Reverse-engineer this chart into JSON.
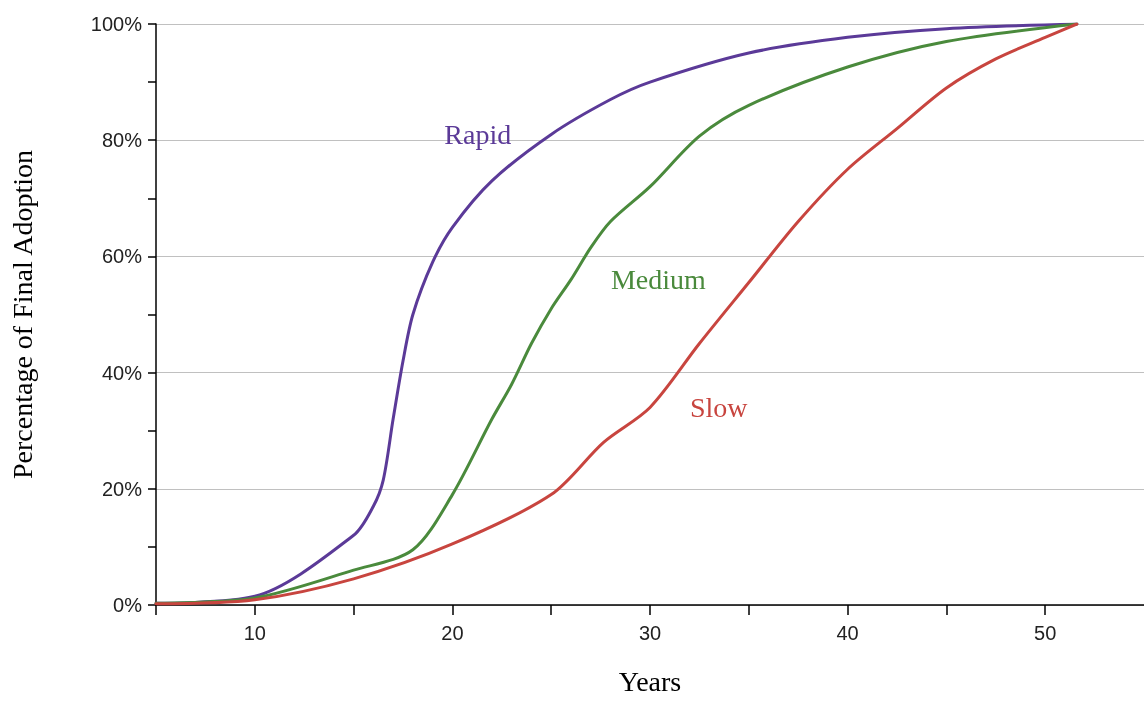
{
  "chart_data": {
    "type": "line",
    "xlabel": "Years",
    "ylabel": "Percentage of Final Adoption",
    "xlim": [
      5,
      55
    ],
    "xticks": [
      {
        "value": 5,
        "label": null
      },
      10,
      {
        "value": 15,
        "label": null
      },
      20,
      {
        "value": 25,
        "label": null
      },
      30,
      {
        "value": 35,
        "label": null
      },
      40,
      {
        "value": 45,
        "label": null
      },
      50
    ],
    "ylim": [
      0,
      100
    ],
    "yticks": [
      {
        "value": 0,
        "label": "0%"
      },
      {
        "value": 10,
        "label": null
      },
      {
        "value": 20,
        "label": "20%"
      },
      {
        "value": 30,
        "label": null
      },
      {
        "value": 40,
        "label": "40%"
      },
      {
        "value": 50,
        "label": null
      },
      {
        "value": 60,
        "label": "60%"
      },
      {
        "value": 70,
        "label": null
      },
      {
        "value": 80,
        "label": "80%"
      },
      {
        "value": 90,
        "label": null
      },
      {
        "value": 100,
        "label": "100%"
      }
    ],
    "grid": "y",
    "marker": "none",
    "line_style": "solid",
    "legend": false,
    "series": [
      {
        "name": "Rapid",
        "color": "#5b3a98",
        "x": [
          5,
          10,
          15,
          16,
          16.5,
          17,
          17.5,
          18,
          19,
          20,
          22,
          25,
          28,
          30,
          35,
          40,
          45,
          51.6
        ],
        "values": [
          0.3,
          1.5,
          12,
          17,
          21.5,
          32,
          42,
          50,
          59,
          65,
          73,
          81,
          87,
          90,
          95,
          97.7,
          99.2,
          100
        ]
      },
      {
        "name": "Medium",
        "color": "#4a8a3c",
        "x": [
          5,
          10,
          15,
          18,
          20,
          22,
          23,
          24,
          25,
          26,
          27,
          28,
          30,
          32.5,
          35,
          40,
          45,
          51.6
        ],
        "values": [
          0.3,
          1.2,
          6,
          9.5,
          19,
          32,
          38,
          45,
          51,
          56,
          61.5,
          66,
          72,
          80.7,
          86,
          92.6,
          97,
          100
        ]
      },
      {
        "name": "Slow",
        "color": "#c8453f",
        "x": [
          5,
          10,
          15,
          20,
          25,
          27.65,
          30,
          32.5,
          35,
          37.5,
          40,
          42.5,
          45,
          47.5,
          50,
          51.6
        ],
        "values": [
          0.2,
          0.9,
          4.5,
          10.5,
          19,
          28,
          34,
          45,
          55.5,
          66,
          75,
          82,
          89,
          94,
          97.7,
          100
        ]
      }
    ]
  }
}
